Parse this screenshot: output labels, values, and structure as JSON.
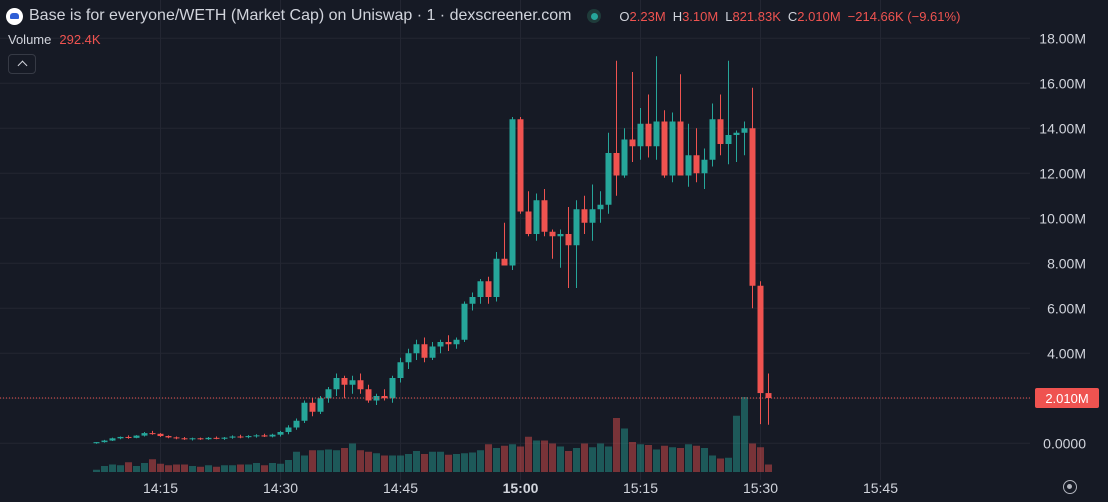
{
  "header": {
    "title": "Base is for everyone/WETH (Market Cap) on Uniswap · 1 · dexscreener.com",
    "ohlc": [
      {
        "key": "O",
        "value": "2.23M"
      },
      {
        "key": "H",
        "value": "3.10M"
      },
      {
        "key": "L",
        "value": "821.83K"
      },
      {
        "key": "C",
        "value": "2.010M"
      }
    ],
    "change": "−214.66K (−9.61%)"
  },
  "volume": {
    "label": "Volume",
    "value": "292.4K"
  },
  "last_price_label": "2.010M",
  "colors": {
    "background": "#161a25",
    "up": "#26a69a",
    "down": "#ef5350",
    "text": "#d1d4dc"
  },
  "icons": [
    "dexscreener-logo-icon",
    "status-dot-icon",
    "chevron-up-icon",
    "gear-icon"
  ],
  "chart_data": {
    "type": "candlestick",
    "xlabel": "",
    "ylabel": "",
    "ylim": [
      -1.5,
      18.5
    ],
    "y_unit": "M",
    "y_ticks": [
      {
        "value": 0,
        "label": "0.0000"
      },
      {
        "value": 2,
        "label": "2.00M"
      },
      {
        "value": 4,
        "label": "4.00M"
      },
      {
        "value": 6,
        "label": "6.00M"
      },
      {
        "value": 8,
        "label": "8.00M"
      },
      {
        "value": 10,
        "label": "10.00M"
      },
      {
        "value": 12,
        "label": "12.00M"
      },
      {
        "value": 14,
        "label": "14.00M"
      },
      {
        "value": 16,
        "label": "16.00M"
      },
      {
        "value": 18,
        "label": "18.00M"
      }
    ],
    "x_ticks": [
      {
        "t": 8,
        "label": "14:15",
        "bold": false
      },
      {
        "t": 23,
        "label": "14:30",
        "bold": false
      },
      {
        "t": 38,
        "label": "14:45",
        "bold": false
      },
      {
        "t": 53,
        "label": "15:00",
        "bold": true
      },
      {
        "t": 68,
        "label": "15:15",
        "bold": false
      },
      {
        "t": 83,
        "label": "15:30",
        "bold": false
      },
      {
        "t": 98,
        "label": "15:45",
        "bold": false
      }
    ],
    "last_price": 2.01,
    "candles": [
      [
        0.0,
        0.05,
        -0.02,
        0.05
      ],
      [
        0.05,
        0.15,
        0.03,
        0.12
      ],
      [
        0.12,
        0.25,
        0.1,
        0.22
      ],
      [
        0.22,
        0.3,
        0.18,
        0.28
      ],
      [
        0.28,
        0.35,
        0.2,
        0.24
      ],
      [
        0.24,
        0.36,
        0.22,
        0.34
      ],
      [
        0.34,
        0.5,
        0.3,
        0.45
      ],
      [
        0.45,
        0.55,
        0.38,
        0.42
      ],
      [
        0.42,
        0.45,
        0.28,
        0.32
      ],
      [
        0.32,
        0.35,
        0.22,
        0.26
      ],
      [
        0.26,
        0.3,
        0.18,
        0.22
      ],
      [
        0.22,
        0.28,
        0.15,
        0.18
      ],
      [
        0.18,
        0.25,
        0.12,
        0.22
      ],
      [
        0.22,
        0.25,
        0.15,
        0.18
      ],
      [
        0.18,
        0.28,
        0.15,
        0.24
      ],
      [
        0.24,
        0.3,
        0.18,
        0.2
      ],
      [
        0.2,
        0.28,
        0.15,
        0.25
      ],
      [
        0.25,
        0.35,
        0.2,
        0.3
      ],
      [
        0.3,
        0.38,
        0.22,
        0.27
      ],
      [
        0.27,
        0.36,
        0.22,
        0.32
      ],
      [
        0.32,
        0.4,
        0.25,
        0.35
      ],
      [
        0.35,
        0.42,
        0.28,
        0.3
      ],
      [
        0.3,
        0.42,
        0.26,
        0.38
      ],
      [
        0.38,
        0.55,
        0.3,
        0.5
      ],
      [
        0.5,
        0.8,
        0.4,
        0.7
      ],
      [
        0.7,
        1.1,
        0.6,
        1.0
      ],
      [
        1.0,
        1.9,
        0.9,
        1.8
      ],
      [
        1.8,
        2.0,
        1.2,
        1.4
      ],
      [
        1.4,
        2.1,
        1.3,
        2.0
      ],
      [
        2.0,
        2.5,
        1.8,
        2.4
      ],
      [
        2.4,
        3.1,
        2.1,
        2.9
      ],
      [
        2.9,
        3.0,
        2.0,
        2.6
      ],
      [
        2.6,
        3.0,
        2.2,
        2.8
      ],
      [
        2.8,
        3.1,
        2.2,
        2.4
      ],
      [
        2.4,
        2.6,
        1.8,
        1.9
      ],
      [
        1.9,
        2.2,
        1.7,
        2.1
      ],
      [
        2.1,
        2.4,
        1.9,
        2.0
      ],
      [
        2.0,
        3.0,
        1.8,
        2.9
      ],
      [
        2.9,
        3.8,
        2.7,
        3.6
      ],
      [
        3.6,
        4.2,
        3.3,
        4.0
      ],
      [
        4.0,
        4.6,
        3.7,
        4.4
      ],
      [
        4.4,
        4.7,
        3.6,
        3.8
      ],
      [
        3.8,
        4.5,
        3.7,
        4.3
      ],
      [
        4.3,
        4.6,
        4.0,
        4.5
      ],
      [
        4.5,
        4.8,
        4.1,
        4.4
      ],
      [
        4.4,
        4.7,
        4.2,
        4.6
      ],
      [
        4.6,
        6.3,
        4.5,
        6.2
      ],
      [
        6.2,
        6.7,
        5.9,
        6.5
      ],
      [
        6.5,
        7.3,
        6.2,
        7.2
      ],
      [
        7.2,
        7.4,
        6.2,
        6.5
      ],
      [
        6.5,
        8.5,
        6.3,
        8.2
      ],
      [
        8.2,
        9.8,
        7.9,
        7.9
      ],
      [
        7.9,
        14.5,
        7.7,
        14.4
      ],
      [
        14.4,
        14.5,
        10.2,
        10.3
      ],
      [
        10.3,
        11.2,
        9.2,
        9.3
      ],
      [
        9.3,
        11.1,
        9.0,
        10.8
      ],
      [
        10.8,
        11.3,
        9.2,
        9.4
      ],
      [
        9.4,
        9.5,
        8.2,
        9.2
      ],
      [
        9.2,
        9.5,
        7.8,
        9.3
      ],
      [
        9.3,
        10.5,
        6.9,
        8.8
      ],
      [
        8.8,
        10.8,
        6.9,
        10.4
      ],
      [
        10.4,
        11.0,
        9.3,
        9.8
      ],
      [
        9.8,
        11.5,
        9.0,
        10.4
      ],
      [
        10.4,
        11.2,
        9.8,
        10.6
      ],
      [
        10.6,
        13.8,
        10.2,
        12.9
      ],
      [
        12.9,
        17.0,
        11.0,
        11.9
      ],
      [
        11.9,
        14.0,
        11.8,
        13.5
      ],
      [
        13.5,
        16.5,
        12.5,
        13.2
      ],
      [
        13.2,
        14.9,
        12.6,
        14.2
      ],
      [
        14.2,
        15.5,
        12.7,
        13.2
      ],
      [
        13.2,
        17.2,
        12.6,
        14.3
      ],
      [
        14.3,
        14.8,
        11.8,
        11.9
      ],
      [
        11.9,
        14.7,
        11.6,
        14.3
      ],
      [
        14.3,
        16.4,
        12.0,
        11.9
      ],
      [
        11.9,
        14.2,
        11.4,
        12.8
      ],
      [
        12.8,
        14.0,
        11.6,
        12.0
      ],
      [
        12.0,
        13.1,
        11.3,
        12.6
      ],
      [
        12.6,
        15.1,
        12.3,
        14.4
      ],
      [
        14.4,
        15.5,
        12.8,
        13.3
      ],
      [
        13.3,
        17.0,
        12.4,
        13.7
      ],
      [
        13.7,
        13.9,
        12.5,
        13.8
      ],
      [
        13.8,
        14.3,
        12.8,
        14.0
      ],
      [
        14.0,
        15.8,
        6.0,
        7.0
      ],
      [
        7.0,
        7.2,
        0.85,
        2.23
      ],
      [
        2.23,
        3.1,
        0.82,
        2.01
      ]
    ],
    "volumes": [
      0.03,
      0.08,
      0.1,
      0.09,
      0.13,
      0.08,
      0.12,
      0.17,
      0.11,
      0.09,
      0.1,
      0.1,
      0.08,
      0.07,
      0.09,
      0.07,
      0.09,
      0.09,
      0.1,
      0.1,
      0.12,
      0.09,
      0.12,
      0.11,
      0.16,
      0.27,
      0.22,
      0.29,
      0.29,
      0.3,
      0.29,
      0.32,
      0.38,
      0.29,
      0.27,
      0.25,
      0.22,
      0.22,
      0.22,
      0.24,
      0.28,
      0.24,
      0.27,
      0.27,
      0.23,
      0.24,
      0.25,
      0.26,
      0.29,
      0.37,
      0.32,
      0.35,
      0.37,
      0.34,
      0.47,
      0.42,
      0.42,
      0.38,
      0.34,
      0.28,
      0.32,
      0.38,
      0.33,
      0.38,
      0.34,
      0.72,
      0.58,
      0.4,
      0.37,
      0.36,
      0.3,
      0.35,
      0.33,
      0.32,
      0.37,
      0.35,
      0.32,
      0.22,
      0.18,
      0.19,
      0.75,
      1.0,
      0.38,
      0.33,
      0.1
    ]
  }
}
